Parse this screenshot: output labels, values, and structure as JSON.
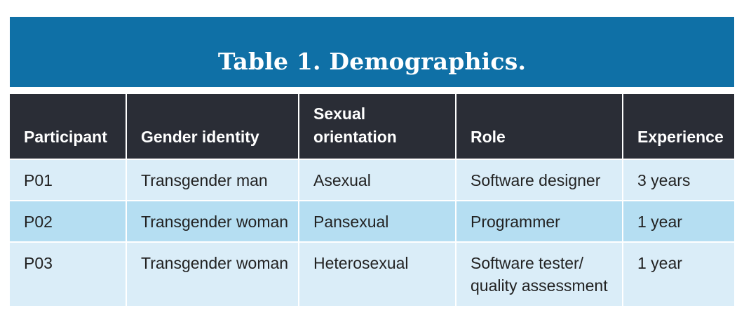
{
  "title": "Table 1. Demographics.",
  "columns": [
    {
      "key": "participant",
      "label": "Participant"
    },
    {
      "key": "gender",
      "label": "Gender identity"
    },
    {
      "key": "orientation",
      "label_line1": "Sexual",
      "label_line2": "orientation"
    },
    {
      "key": "role",
      "label": "Role"
    },
    {
      "key": "experience",
      "label": "Experience"
    }
  ],
  "rows": [
    {
      "participant": "P01",
      "gender": "Transgender man",
      "orientation": "Asexual",
      "role_line1": "Software designer",
      "role_line2": "",
      "experience": "3 years"
    },
    {
      "participant": "P02",
      "gender": "Transgender woman",
      "orientation": "Pansexual",
      "role_line1": "Programmer",
      "role_line2": "",
      "experience": "1 year"
    },
    {
      "participant": "P03",
      "gender": "Transgender woman",
      "orientation": "Heterosexual",
      "role_line1": "Software tester/",
      "role_line2": "quality assessment",
      "experience": "1 year"
    }
  ],
  "colors": {
    "title_bar": "#0f70a6",
    "header_bg": "#2a2d36",
    "row_light": "#daedf8",
    "row_dark": "#b5def2"
  }
}
